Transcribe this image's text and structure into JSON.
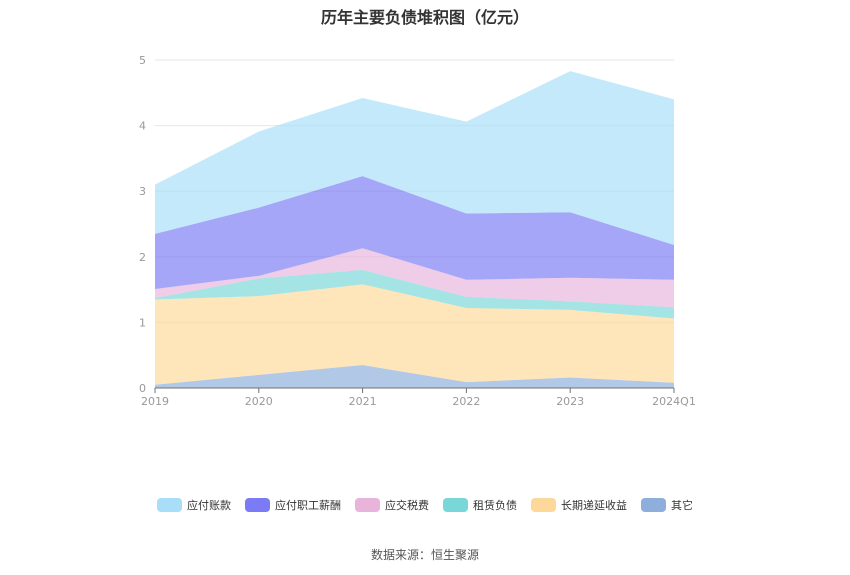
{
  "chart_title": "历年主要负债堆积图（亿元）",
  "source_text": "数据来源：恒生聚源",
  "chart_data": {
    "type": "area",
    "stacked": true,
    "title": "历年主要负债堆积图（亿元）",
    "x": [
      "2019",
      "2020",
      "2021",
      "2022",
      "2023",
      "2024Q1"
    ],
    "ylim": [
      0,
      5
    ],
    "yticks": [
      "0",
      "1",
      "2",
      "3",
      "4",
      "5"
    ],
    "grid": true,
    "legend_position": "bottom",
    "series": [
      {
        "name": "其它",
        "color": "#8eaedc",
        "values": [
          0.05,
          0.2,
          0.35,
          0.09,
          0.16,
          0.08
        ]
      },
      {
        "name": "长期递延收益",
        "color": "#fdd89a",
        "values": [
          1.3,
          1.2,
          1.23,
          1.13,
          1.03,
          0.98
        ]
      },
      {
        "name": "租赁负债",
        "color": "#7ad7d7",
        "values": [
          0.02,
          0.27,
          0.22,
          0.17,
          0.13,
          0.17
        ]
      },
      {
        "name": "应交税费",
        "color": "#e8b4dc",
        "values": [
          0.14,
          0.04,
          0.33,
          0.26,
          0.36,
          0.42
        ]
      },
      {
        "name": "应付职工薪酬",
        "color": "#7b7cf5",
        "values": [
          0.84,
          1.04,
          1.1,
          1.01,
          1.0,
          0.53
        ]
      },
      {
        "name": "应付账款",
        "color": "#a8def8",
        "values": [
          0.75,
          1.16,
          1.19,
          1.4,
          2.15,
          2.22
        ]
      }
    ]
  }
}
